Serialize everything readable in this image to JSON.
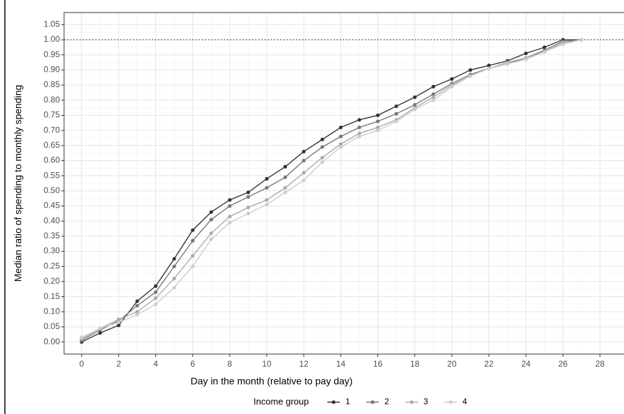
{
  "chart_data": {
    "type": "line",
    "x_label": "Day in the month (relative to pay day)",
    "y_label": "Median ratio of spending to monthly spending",
    "x": [
      0,
      1,
      2,
      3,
      4,
      5,
      6,
      7,
      8,
      9,
      10,
      11,
      12,
      13,
      14,
      15,
      16,
      17,
      18,
      19,
      20,
      21,
      22,
      23,
      24,
      25,
      26,
      27
    ],
    "series": [
      {
        "name": "1",
        "color": "#333333",
        "values": [
          0.0,
          0.03,
          0.055,
          0.135,
          0.185,
          0.275,
          0.37,
          0.43,
          0.47,
          0.495,
          0.54,
          0.58,
          0.63,
          0.67,
          0.71,
          0.735,
          0.75,
          0.78,
          0.81,
          0.845,
          0.87,
          0.9,
          0.915,
          0.93,
          0.955,
          0.975,
          1.0,
          1.0
        ]
      },
      {
        "name": "2",
        "color": "#777777",
        "values": [
          0.005,
          0.04,
          0.07,
          0.12,
          0.165,
          0.25,
          0.335,
          0.405,
          0.45,
          0.48,
          0.51,
          0.545,
          0.6,
          0.645,
          0.68,
          0.71,
          0.73,
          0.755,
          0.785,
          0.82,
          0.855,
          0.885,
          0.905,
          0.92,
          0.94,
          0.965,
          0.995,
          1.0
        ]
      },
      {
        "name": "3",
        "color": "#aaaaaa",
        "values": [
          0.01,
          0.045,
          0.075,
          0.1,
          0.145,
          0.21,
          0.285,
          0.36,
          0.415,
          0.445,
          0.47,
          0.51,
          0.56,
          0.61,
          0.655,
          0.69,
          0.71,
          0.735,
          0.775,
          0.81,
          0.85,
          0.88,
          0.905,
          0.925,
          0.94,
          0.96,
          0.99,
          1.0
        ]
      },
      {
        "name": "4",
        "color": "#cccccc",
        "values": [
          0.015,
          0.045,
          0.065,
          0.09,
          0.125,
          0.18,
          0.25,
          0.34,
          0.395,
          0.425,
          0.455,
          0.495,
          0.535,
          0.595,
          0.645,
          0.68,
          0.7,
          0.73,
          0.77,
          0.8,
          0.845,
          0.88,
          0.905,
          0.92,
          0.935,
          0.96,
          0.985,
          1.0
        ]
      }
    ],
    "legend_title": "Income group",
    "legend": "bottom",
    "hline": 1,
    "xlim": [
      -0.95,
      29.5
    ],
    "ylim": [
      -0.04,
      1.09
    ],
    "xticks": [
      0,
      2,
      4,
      6,
      8,
      10,
      12,
      14,
      16,
      18,
      20,
      22,
      24,
      26,
      28
    ],
    "yticks": [
      {
        "value": 0,
        "label": "0.00"
      },
      {
        "value": 0.05,
        "label": "0.05"
      },
      {
        "value": 0.1,
        "label": "0.10"
      },
      {
        "value": 0.15,
        "label": "0.15"
      },
      {
        "value": 0.2,
        "label": "0.20"
      },
      {
        "value": 0.25,
        "label": "0.25"
      },
      {
        "value": 0.3,
        "label": "0.30"
      },
      {
        "value": 0.35,
        "label": "0.35"
      },
      {
        "value": 0.4,
        "label": "0.40"
      },
      {
        "value": 0.45,
        "label": "0.45"
      },
      {
        "value": 0.5,
        "label": "0.50"
      },
      {
        "value": 0.55,
        "label": "0.55"
      },
      {
        "value": 0.6,
        "label": "0.60"
      },
      {
        "value": 0.65,
        "label": "0.65"
      },
      {
        "value": 0.7,
        "label": "0.70"
      },
      {
        "value": 0.75,
        "label": "0.75"
      },
      {
        "value": 0.8,
        "label": "0.80"
      },
      {
        "value": 0.85,
        "label": "0.85"
      },
      {
        "value": 0.9,
        "label": "0.90"
      },
      {
        "value": 0.95,
        "label": "0.95"
      },
      {
        "value": 1,
        "label": "1.00"
      },
      {
        "value": 1.05,
        "label": "1.05"
      }
    ],
    "grid": true
  }
}
